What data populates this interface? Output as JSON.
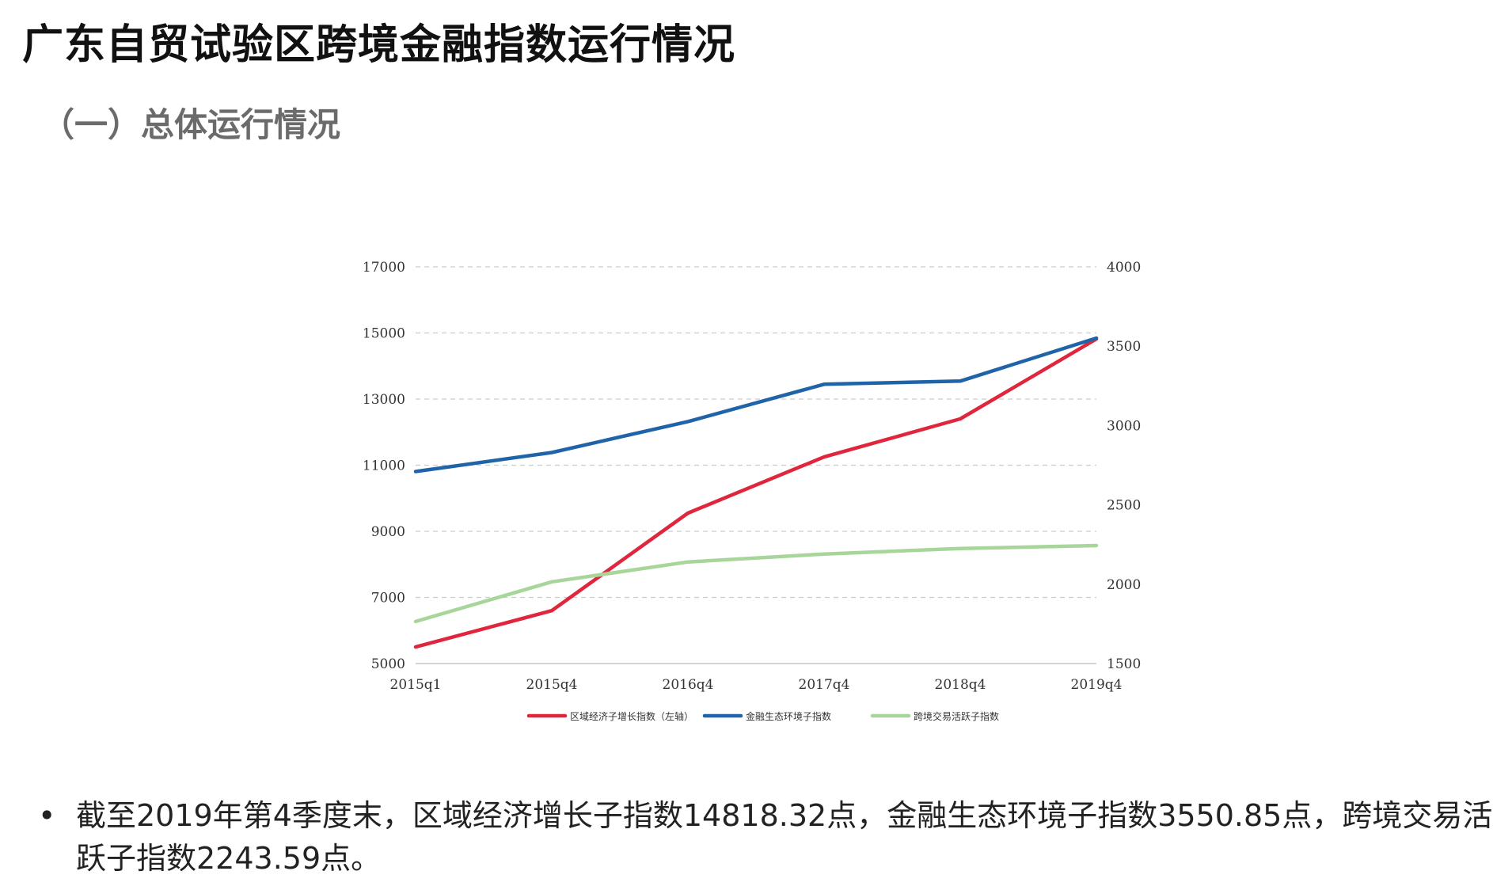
{
  "page": {
    "title": "广东自贸试验区跨境金融指数运行情况",
    "subtitle": "（一）总体运行情况",
    "bullet": "截至2019年第4季度末，区域经济增长子指数14818.32点，金融生态环境子指数3550.85点，跨境交易活跃子指数2243.59点。"
  },
  "colors": {
    "red": "#e0263c",
    "blue": "#1f64a8",
    "green": "#a8d69a",
    "grid": "#cccccc",
    "axis_text": "#333333"
  },
  "chart_data": {
    "type": "line",
    "categories": [
      "2015q1",
      "2015q4",
      "2016q4",
      "2017q4",
      "2018q4",
      "2019q4"
    ],
    "y_left": {
      "min": 5000,
      "max": 17000,
      "ticks": [
        5000,
        7000,
        9000,
        11000,
        13000,
        15000,
        17000
      ]
    },
    "y_right": {
      "min": 1500,
      "max": 4000,
      "ticks": [
        1500,
        2000,
        2500,
        3000,
        3500,
        4000
      ]
    },
    "grid": true,
    "legend_position": "bottom",
    "series": [
      {
        "name": "区域经济子增长指数（左轴）",
        "axis": "left",
        "color": "red",
        "values": [
          5500,
          6600,
          9550,
          11250,
          12400,
          14818.32
        ]
      },
      {
        "name": "金融生态环境子指数",
        "axis": "right",
        "color": "blue",
        "values": [
          2710,
          2830,
          3025,
          3260,
          3280,
          3550.85
        ]
      },
      {
        "name": "跨境交易活跃子指数",
        "axis": "right",
        "color": "green",
        "values": [
          1765,
          2015,
          2140,
          2190,
          2225,
          2243.59
        ]
      }
    ]
  }
}
